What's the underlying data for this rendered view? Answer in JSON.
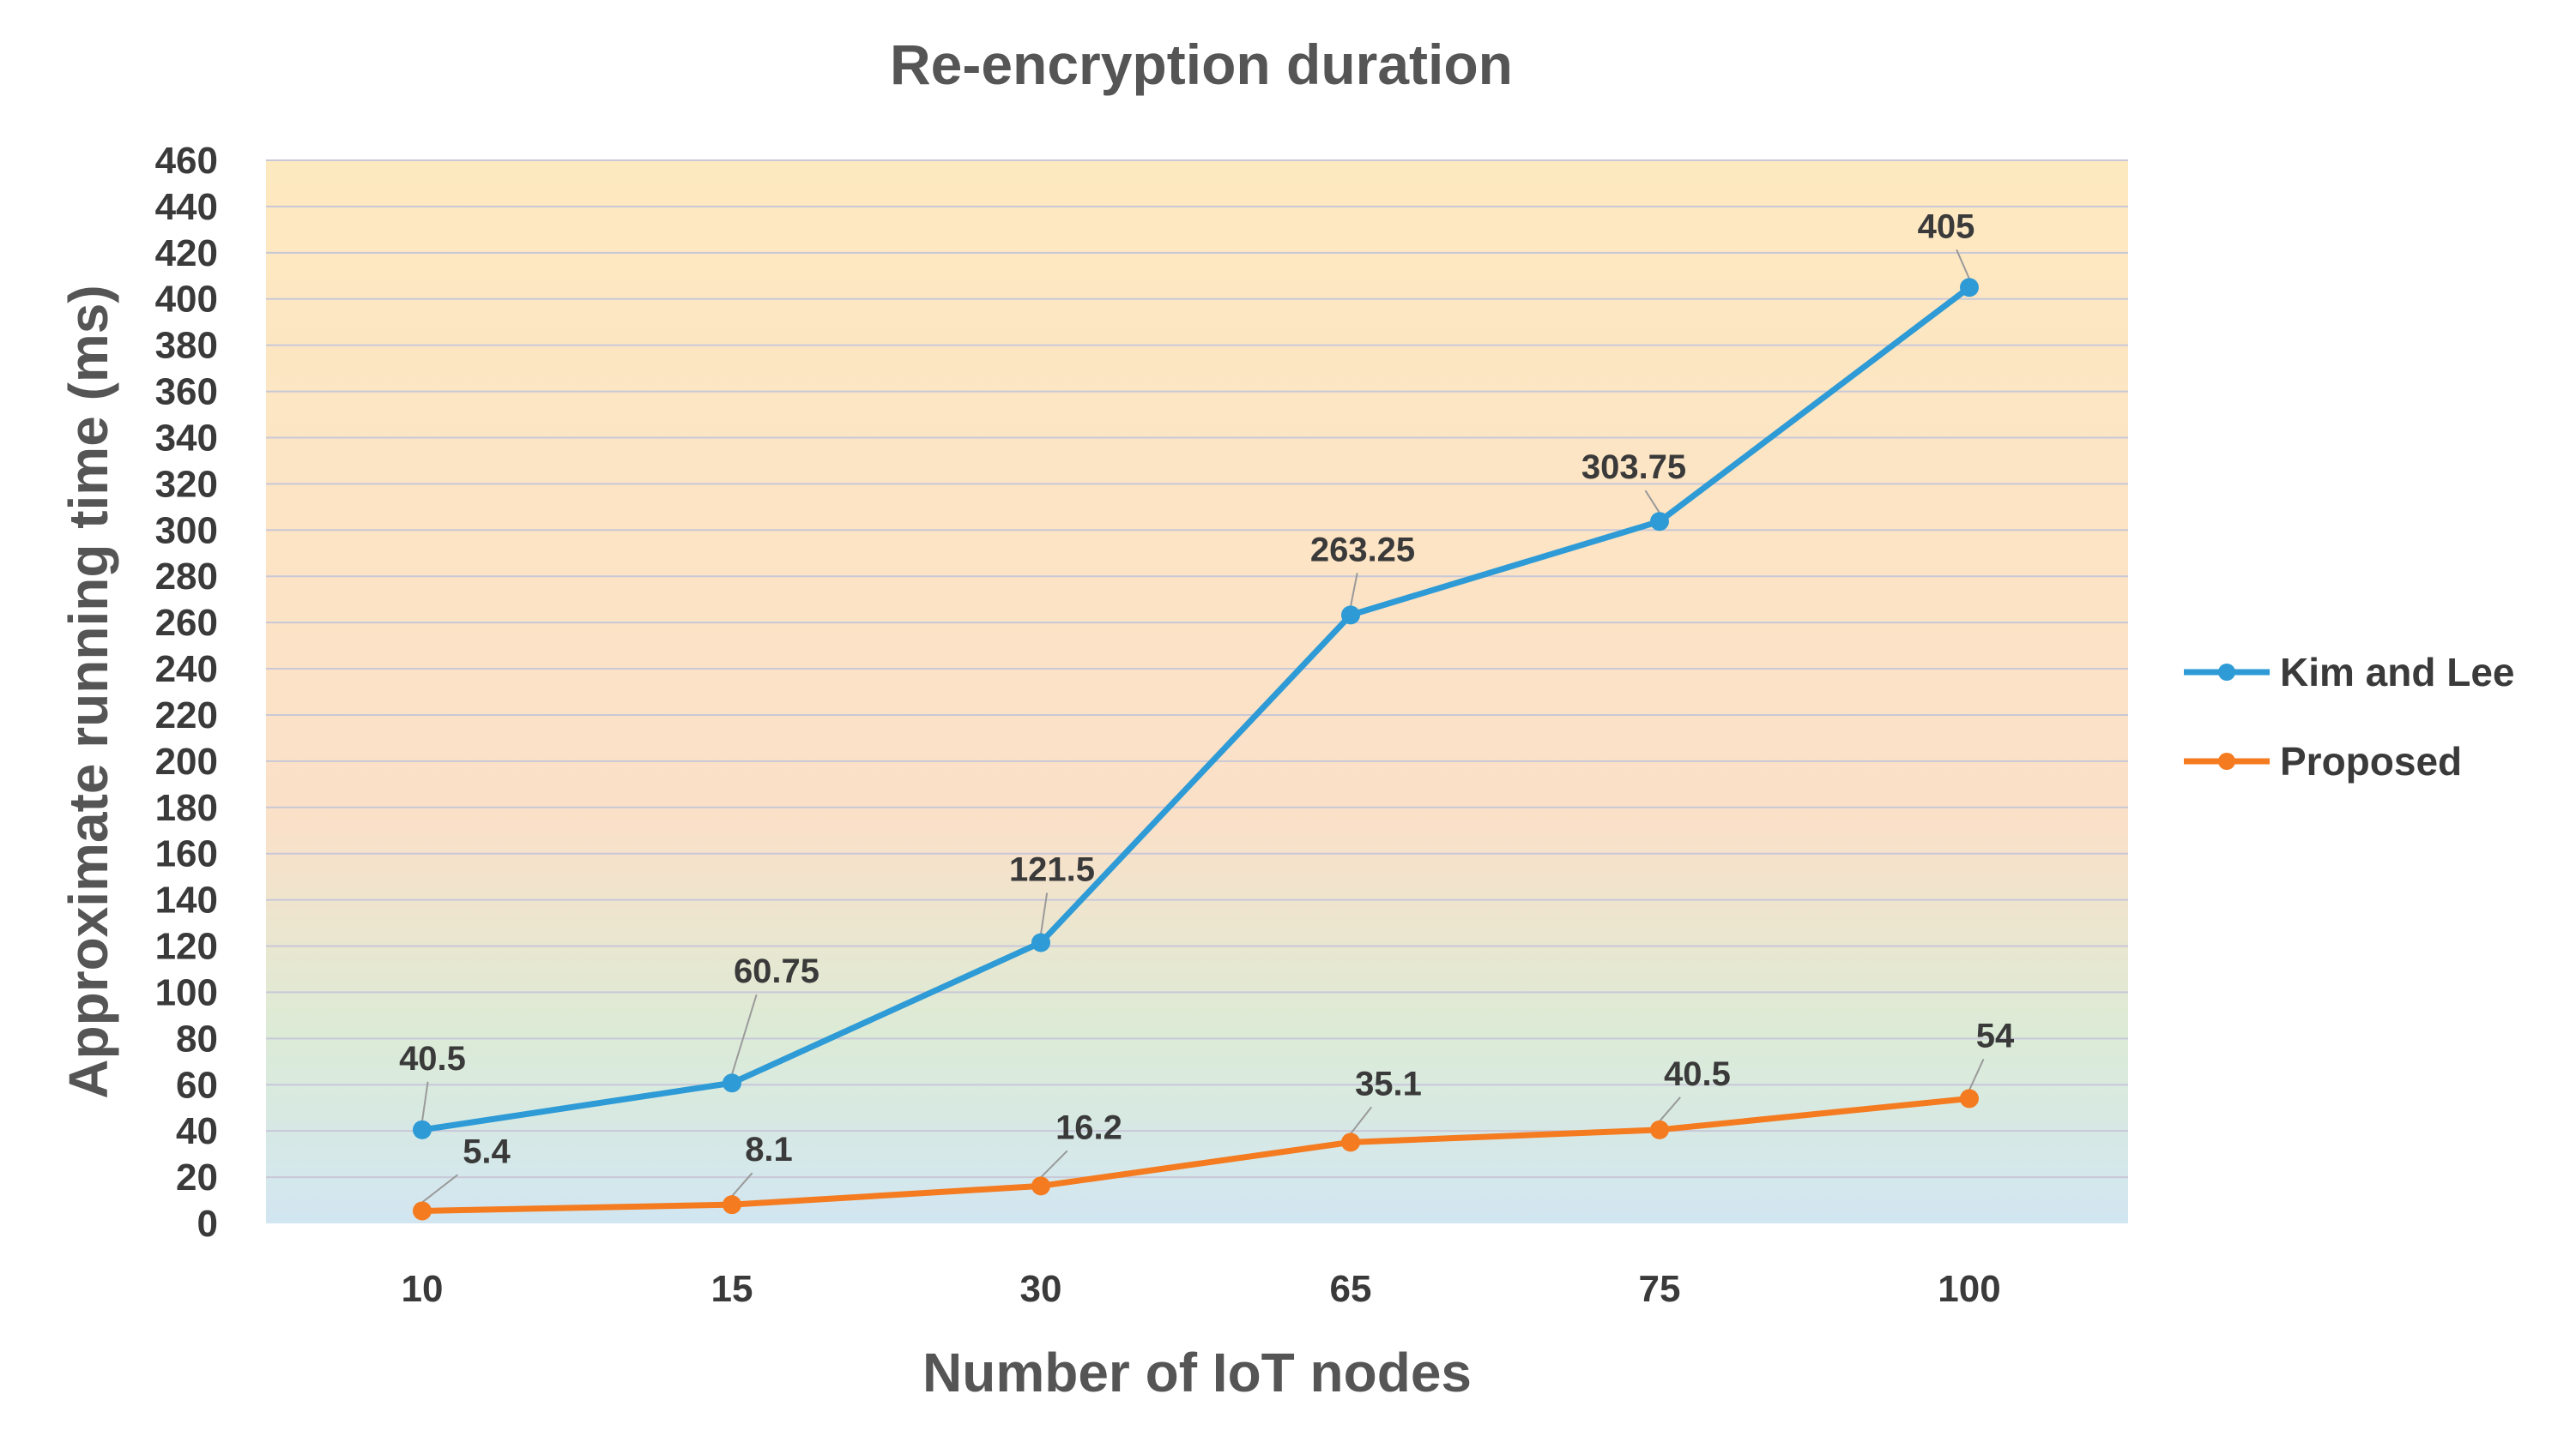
{
  "chart_data": {
    "type": "line",
    "title": "Re-encryption duration",
    "xlabel": "Number of IoT nodes",
    "ylabel": "Approximate running time (ms)",
    "categories": [
      "10",
      "15",
      "30",
      "65",
      "75",
      "100"
    ],
    "ylim": [
      0,
      460
    ],
    "y_ticks": [
      "0",
      "20",
      "40",
      "60",
      "80",
      "100",
      "120",
      "140",
      "160",
      "180",
      "200",
      "220",
      "240",
      "260",
      "280",
      "300",
      "320",
      "340",
      "360",
      "380",
      "400",
      "420",
      "440",
      "460"
    ],
    "grid": true,
    "legend_position": "right",
    "series": [
      {
        "name": "Kim and Lee",
        "color": "#2e9bd6",
        "values": [
          40.5,
          60.75,
          121.5,
          263.25,
          303.75,
          405
        ],
        "labels": [
          "40.5",
          "60.75",
          "121.5",
          "263.25",
          "303.75",
          "405"
        ]
      },
      {
        "name": "Proposed",
        "color": "#f47b20",
        "values": [
          5.4,
          8.1,
          16.2,
          35.1,
          40.5,
          54
        ],
        "labels": [
          "5.4",
          "8.1",
          "16.2",
          "35.1",
          "40.5",
          "54"
        ]
      }
    ],
    "background_gradient": [
      "#fde9c0",
      "#fbe0c8",
      "#dcebd6",
      "#d2e6f2"
    ],
    "grid_color": "#c8c8d8"
  }
}
